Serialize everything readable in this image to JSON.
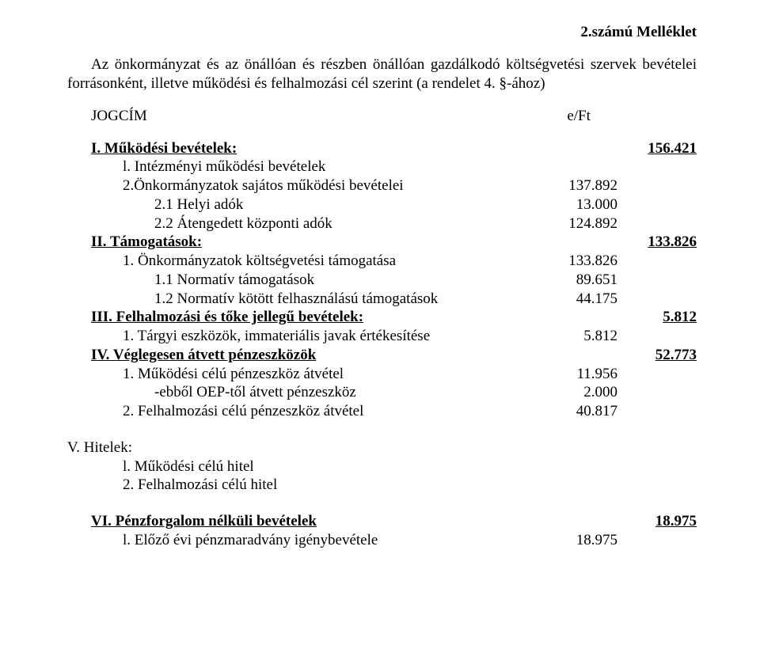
{
  "header": {
    "title": "2.számú Melléklet"
  },
  "intro": "Az önkormányzat és az önállóan és részben önállóan gazdálkodó költségvetési szervek bevételei forrásonként, illetve működési és felhalmozási cél szerint (a rendelet 4. §-ához)",
  "jogcim": {
    "label": "JOGCÍM",
    "unit": "e/Ft"
  },
  "rows": {
    "I": {
      "label": "I. Működési bevételek:",
      "val": "156.421"
    },
    "I_l": {
      "label": "l. Intézményi működési bevételek"
    },
    "I_2": {
      "label": "2.Önkormányzatok sajátos működési bevételei",
      "val": "137.892"
    },
    "I_21": {
      "label": "2.1 Helyi adók",
      "val": "13.000"
    },
    "I_22": {
      "label": "2.2 Átengedett központi adók",
      "val": "124.892"
    },
    "II": {
      "label": "II. Támogatások:",
      "val": "133.826"
    },
    "II_1": {
      "label": "1. Önkormányzatok költségvetési támogatása",
      "val": "133.826"
    },
    "II_11": {
      "label": "1.1 Normatív támogatások",
      "val": "89.651"
    },
    "II_12": {
      "label": "1.2 Normatív kötött felhasználású támogatások",
      "val": "44.175"
    },
    "III": {
      "label": "III. Felhalmozási és tőke jellegű bevételek:",
      "val": "5.812"
    },
    "III_1": {
      "label": "1. Tárgyi eszközök, immateriális javak értékesítése",
      "val": "5.812"
    },
    "IV": {
      "label": "IV. Véglegesen átvett pénzeszközök",
      "val": "52.773"
    },
    "IV_1": {
      "label": "1. Működési célú pénzeszköz átvétel",
      "val": "11.956"
    },
    "IV_1a": {
      "label": "-ebből OEP-től átvett pénzeszköz",
      "val": "2.000"
    },
    "IV_2": {
      "label": "2. Felhalmozási célú pénzeszköz átvétel",
      "val": "40.817"
    },
    "V": {
      "label": "V. Hitelek:"
    },
    "V_l": {
      "label": "l. Működési célú hitel"
    },
    "V_2": {
      "label": "2. Felhalmozási célú hitel"
    },
    "VI": {
      "label": "VI. Pénzforgalom nélküli bevételek",
      "val": "18.975"
    },
    "VI_l": {
      "label": "l. Előző évi pénzmaradvány igénybevétele",
      "val": "18.975"
    }
  }
}
